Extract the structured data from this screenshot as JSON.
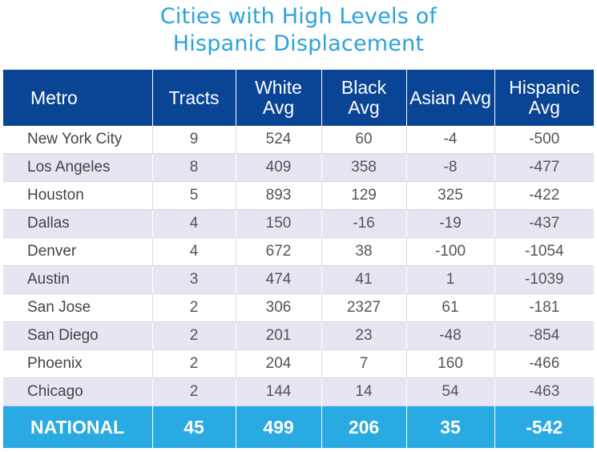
{
  "title_line1": "Cities with High Levels of",
  "title_line2": "Hispanic Displacement",
  "chart_data": {
    "type": "table",
    "columns": [
      "Metro",
      "Tracts",
      "White Avg",
      "Black Avg",
      "Asian Avg",
      "Hispanic Avg"
    ],
    "rows": [
      [
        "New York City",
        "9",
        "524",
        "60",
        "-4",
        "-500"
      ],
      [
        "Los Angeles",
        "8",
        "409",
        "358",
        "-8",
        "-477"
      ],
      [
        "Houston",
        "5",
        "893",
        "129",
        "325",
        "-422"
      ],
      [
        "Dallas",
        "4",
        "150",
        "-16",
        "-19",
        "-437"
      ],
      [
        "Denver",
        "4",
        "672",
        "38",
        "-100",
        "-1054"
      ],
      [
        "Austin",
        "3",
        "474",
        "41",
        "1",
        "-1039"
      ],
      [
        "San Jose",
        "2",
        "306",
        "2327",
        "61",
        "-181"
      ],
      [
        "San Diego",
        "2",
        "201",
        "23",
        "-48",
        "-854"
      ],
      [
        "Phoenix",
        "2",
        "204",
        "7",
        "160",
        "-466"
      ],
      [
        "Chicago",
        "2",
        "144",
        "14",
        "54",
        "-463"
      ]
    ],
    "total_row": [
      "NATIONAL",
      "45",
      "499",
      "206",
      "35",
      "-542"
    ]
  },
  "colors": {
    "title": "#2aa3dc",
    "header_bg": "#0a4595",
    "stripe": "#e6e6f2",
    "national_bg": "#2aaae2"
  }
}
